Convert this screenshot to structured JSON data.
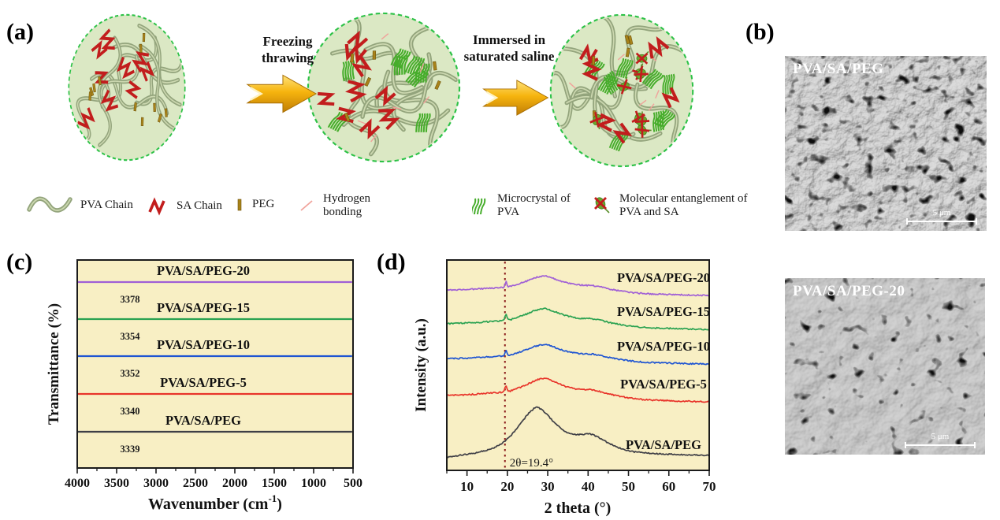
{
  "panel_a": {
    "label": "(a)",
    "step1_label": [
      "Freezing",
      "thrawing"
    ],
    "step2_label": [
      "Immersed in",
      "saturated saline"
    ],
    "legend": [
      {
        "label": "PVA Chain"
      },
      {
        "label": "SA Chain"
      },
      {
        "label": "PEG"
      },
      {
        "label": "Hydrogen bonding"
      },
      {
        "label": "Microcrystal of PVA"
      },
      {
        "label": "Molecular entanglement of PVA and SA"
      }
    ]
  },
  "panel_b": {
    "label": "(b)",
    "images": [
      {
        "title": "PVA/SA/PEG",
        "scale_bar": "5 μm"
      },
      {
        "title": "PVA/SA/PEG-20",
        "scale_bar": "5 μm"
      }
    ]
  },
  "panel_c": {
    "label": "(c)"
  },
  "panel_d": {
    "label": "(d)"
  },
  "colors": {
    "circle_fill": "#dbe8c4",
    "circle_border": "#2dc247",
    "pva_chain": "#93a47c",
    "pva_chain_highlight": "#ccd8b0",
    "sa_chain": "#c21d1d",
    "peg": "#a8831a",
    "hydrogen_bond": "#f0a39b",
    "microcrystal": "#46ad2b",
    "entanglement_fill": "#6aa92f",
    "arrow_gold_light": "#ffe27a",
    "arrow_gold_dark": "#c07d05",
    "plot_bg": "#f8efc4",
    "frame": "#1b1b1b",
    "sem_label": "#ffffff"
  },
  "chart_data": [
    {
      "type": "line",
      "panel": "c",
      "title": "",
      "xlabel": "Wavenumber (cm⁻¹)",
      "xlabel_parts": [
        "Wavenumber (cm",
        "-1",
        ")"
      ],
      "ylabel": "Transmittance (%)",
      "x_range": [
        4000,
        500
      ],
      "x_axis_reversed": true,
      "x_ticks": [
        4000,
        3500,
        3000,
        2500,
        2000,
        1500,
        1000,
        500
      ],
      "grid": false,
      "legend_position": "inline-labels",
      "plot_bg": "#f8efc4",
      "series": [
        {
          "name": "PVA/SA/PEG-20",
          "color": "#a05fd6",
          "peak_annotation": "3378",
          "baseline": 43,
          "amplitude": 42
        },
        {
          "name": "PVA/SA/PEG-15",
          "color": "#2aa251",
          "peak_annotation": "3354",
          "baseline": 90,
          "amplitude": 43
        },
        {
          "name": "PVA/SA/PEG-10",
          "color": "#1f55d2",
          "peak_annotation": "3352",
          "baseline": 137,
          "amplitude": 43
        },
        {
          "name": "PVA/SA/PEG-5",
          "color": "#e8342a",
          "peak_annotation": "3340",
          "baseline": 185,
          "amplitude": 45
        },
        {
          "name": "PVA/SA/PEG",
          "color": "#3f3f46",
          "peak_annotation": "3339",
          "baseline": 233,
          "amplitude": 40
        }
      ],
      "profile": [
        [
          4000,
          0.0
        ],
        [
          3900,
          0.0
        ],
        [
          3800,
          0.01
        ],
        [
          3700,
          0.03
        ],
        [
          3620,
          0.1
        ],
        [
          3550,
          0.26
        ],
        [
          3480,
          0.5
        ],
        [
          3420,
          0.72
        ],
        [
          3360,
          0.92
        ],
        [
          3300,
          1.0
        ],
        [
          3240,
          0.94
        ],
        [
          3160,
          0.74
        ],
        [
          3080,
          0.5
        ],
        [
          3020,
          0.32
        ],
        [
          2975,
          0.22
        ],
        [
          2945,
          0.28
        ],
        [
          2920,
          0.36
        ],
        [
          2895,
          0.27
        ],
        [
          2860,
          0.14
        ],
        [
          2800,
          0.08
        ],
        [
          2700,
          0.05
        ],
        [
          2600,
          0.04
        ],
        [
          2450,
          0.03
        ],
        [
          2300,
          0.03
        ],
        [
          2150,
          0.03
        ],
        [
          2000,
          0.04
        ],
        [
          1900,
          0.05
        ],
        [
          1800,
          0.07
        ],
        [
          1730,
          0.12
        ],
        [
          1660,
          0.35
        ],
        [
          1635,
          0.42
        ],
        [
          1600,
          0.3
        ],
        [
          1560,
          0.18
        ],
        [
          1500,
          0.2
        ],
        [
          1450,
          0.28
        ],
        [
          1420,
          0.24
        ],
        [
          1380,
          0.28
        ],
        [
          1330,
          0.22
        ],
        [
          1280,
          0.18
        ],
        [
          1230,
          0.17
        ],
        [
          1180,
          0.2
        ],
        [
          1140,
          0.28
        ],
        [
          1100,
          0.42
        ],
        [
          1070,
          0.35
        ],
        [
          1040,
          0.28
        ],
        [
          1010,
          0.35
        ],
        [
          980,
          0.42
        ],
        [
          940,
          0.36
        ],
        [
          900,
          0.3
        ],
        [
          860,
          0.32
        ],
        [
          830,
          0.36
        ],
        [
          790,
          0.38
        ],
        [
          740,
          0.44
        ],
        [
          680,
          0.55
        ],
        [
          620,
          0.68
        ],
        [
          560,
          0.84
        ],
        [
          500,
          1.0
        ]
      ]
    },
    {
      "type": "line",
      "panel": "d",
      "title": "",
      "xlabel": "2 theta (°)",
      "ylabel": "Intensity (a.u.)",
      "x_range": [
        5,
        70
      ],
      "x_ticks": [
        10,
        20,
        30,
        40,
        50,
        60,
        70
      ],
      "grid": false,
      "legend_position": "inline-labels",
      "plot_bg": "#f8efc4",
      "annotation": {
        "text": "2θ=19.4°",
        "x": 19.4,
        "line_color": "#8b1b1b",
        "line_style": "dotted"
      },
      "series": [
        {
          "name": "PVA/SA/PEG-20",
          "color": "#a05fd6",
          "baseline": 60,
          "amplitude": 30,
          "profile": "peg"
        },
        {
          "name": "PVA/SA/PEG-15",
          "color": "#2aa251",
          "baseline": 103,
          "amplitude": 32,
          "profile": "peg"
        },
        {
          "name": "PVA/SA/PEG-10",
          "color": "#1f55d2",
          "baseline": 147,
          "amplitude": 30,
          "profile": "peg"
        },
        {
          "name": "PVA/SA/PEG-5",
          "color": "#e8342a",
          "baseline": 195,
          "amplitude": 36,
          "profile": "peg"
        },
        {
          "name": "PVA/SA/PEG",
          "color": "#3f3f46",
          "baseline": 263,
          "amplitude": 61,
          "profile": "base"
        }
      ],
      "profiles": {
        "peg": [
          [
            5,
            0.22
          ],
          [
            8,
            0.24
          ],
          [
            11,
            0.26
          ],
          [
            14,
            0.29
          ],
          [
            17,
            0.32
          ],
          [
            18.6,
            0.34
          ],
          [
            19.15,
            0.36
          ],
          [
            19.45,
            0.5
          ],
          [
            19.62,
            0.62
          ],
          [
            19.85,
            0.48
          ],
          [
            20.3,
            0.38
          ],
          [
            21.5,
            0.42
          ],
          [
            23,
            0.5
          ],
          [
            25,
            0.62
          ],
          [
            26.5,
            0.72
          ],
          [
            28,
            0.8
          ],
          [
            29,
            0.82
          ],
          [
            30,
            0.8
          ],
          [
            31.5,
            0.72
          ],
          [
            33,
            0.62
          ],
          [
            35,
            0.52
          ],
          [
            37,
            0.46
          ],
          [
            39,
            0.43
          ],
          [
            41,
            0.42
          ],
          [
            42.5,
            0.38
          ],
          [
            44,
            0.32
          ],
          [
            46,
            0.25
          ],
          [
            48,
            0.19
          ],
          [
            50,
            0.14
          ],
          [
            53,
            0.09
          ],
          [
            56,
            0.06
          ],
          [
            60,
            0.04
          ],
          [
            64,
            0.02
          ],
          [
            67,
            0.01
          ],
          [
            70,
            0.0
          ]
        ],
        "base": [
          [
            5,
            -0.04
          ],
          [
            8,
            0.0
          ],
          [
            11,
            0.04
          ],
          [
            13,
            0.07
          ],
          [
            15,
            0.11
          ],
          [
            17,
            0.17
          ],
          [
            18.5,
            0.24
          ],
          [
            19.4,
            0.3
          ],
          [
            20.5,
            0.38
          ],
          [
            22,
            0.52
          ],
          [
            23.5,
            0.68
          ],
          [
            25,
            0.85
          ],
          [
            26.2,
            0.95
          ],
          [
            27,
            1.0
          ],
          [
            28,
            0.98
          ],
          [
            29.5,
            0.88
          ],
          [
            31,
            0.74
          ],
          [
            32.5,
            0.62
          ],
          [
            34,
            0.52
          ],
          [
            35.5,
            0.46
          ],
          [
            37,
            0.43
          ],
          [
            38.5,
            0.44
          ],
          [
            40,
            0.45
          ],
          [
            41.5,
            0.42
          ],
          [
            43,
            0.35
          ],
          [
            45,
            0.26
          ],
          [
            47,
            0.18
          ],
          [
            49,
            0.12
          ],
          [
            51,
            0.08
          ],
          [
            54,
            0.05
          ],
          [
            58,
            0.03
          ],
          [
            62,
            0.02
          ],
          [
            66,
            0.01
          ],
          [
            70,
            0.0
          ]
        ]
      }
    }
  ]
}
